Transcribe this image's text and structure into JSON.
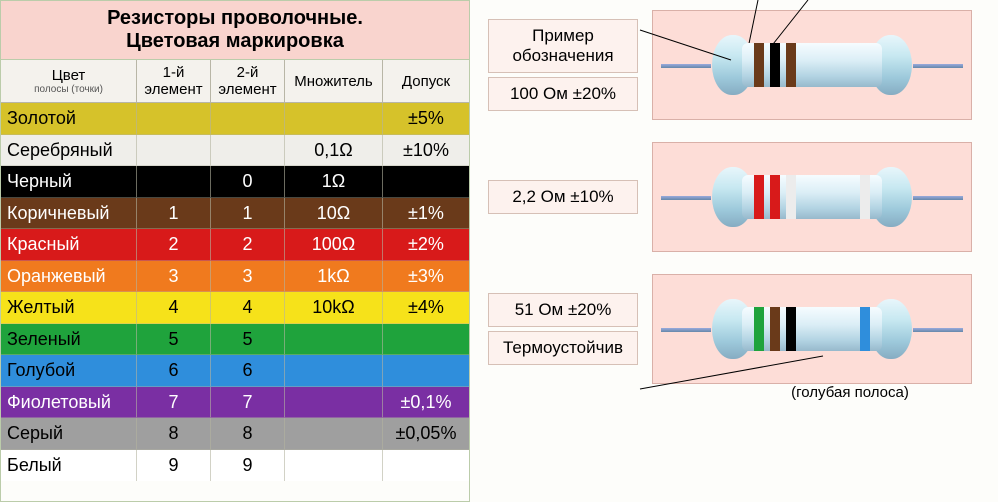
{
  "table": {
    "title_line1": "Резисторы проволочные.",
    "title_line2": "Цветовая маркировка",
    "headers": {
      "color": "Цвет",
      "color_sub": "полосы (точки)",
      "d1": "1-й элемент",
      "d2": "2-й элемент",
      "mult": "Множитель",
      "tol": "Допуск"
    },
    "rows": [
      {
        "name": "Золотой",
        "bg": "#d6c22a",
        "fg": "#000000",
        "d1": "",
        "d2": "",
        "mult": "",
        "tol": "±5%"
      },
      {
        "name": "Серебряный",
        "bg": "#efeeea",
        "fg": "#000000",
        "d1": "",
        "d2": "",
        "mult": "0,1Ω",
        "tol": "±10%"
      },
      {
        "name": "Черный",
        "bg": "#000000",
        "fg": "#ffffff",
        "d1": "",
        "d2": "0",
        "mult": "1Ω",
        "tol": ""
      },
      {
        "name": "Коричневый",
        "bg": "#6a3a1a",
        "fg": "#ffffff",
        "d1": "1",
        "d2": "1",
        "mult": "10Ω",
        "tol": "±1%"
      },
      {
        "name": "Красный",
        "bg": "#d81a1a",
        "fg": "#ffffff",
        "d1": "2",
        "d2": "2",
        "mult": "100Ω",
        "tol": "±2%"
      },
      {
        "name": "Оранжевый",
        "bg": "#f07a1e",
        "fg": "#ffffff",
        "d1": "3",
        "d2": "3",
        "mult": "1kΩ",
        "tol": "±3%"
      },
      {
        "name": "Желтый",
        "bg": "#f6e21a",
        "fg": "#000000",
        "d1": "4",
        "d2": "4",
        "mult": "10kΩ",
        "tol": "±4%"
      },
      {
        "name": "Зеленый",
        "bg": "#1fa33c",
        "fg": "#000000",
        "d1": "5",
        "d2": "5",
        "mult": "",
        "tol": ""
      },
      {
        "name": "Голубой",
        "bg": "#2f8edc",
        "fg": "#000000",
        "d1": "6",
        "d2": "6",
        "mult": "",
        "tol": ""
      },
      {
        "name": "Фиолетовый",
        "bg": "#7a2fa3",
        "fg": "#ffffff",
        "d1": "7",
        "d2": "7",
        "mult": "",
        "tol": "±0,1%"
      },
      {
        "name": "Серый",
        "bg": "#9f9f9f",
        "fg": "#000000",
        "d1": "8",
        "d2": "8",
        "mult": "",
        "tol": "±0,05%"
      },
      {
        "name": "Белый",
        "bg": "#ffffff",
        "fg": "#000000",
        "d1": "9",
        "d2": "9",
        "mult": "",
        "tol": ""
      }
    ]
  },
  "examples": {
    "panel_header": "Пример обозначения",
    "items": [
      {
        "label": "100 Ом ±20%",
        "bands": [
          "#6a3a1a",
          "#000000",
          "#6a3a1a"
        ],
        "tol_band": null,
        "callouts": true
      },
      {
        "label": "2,2 Ом ±10%",
        "bands": [
          "#d81a1a",
          "#d81a1a",
          "#ececec"
        ],
        "tol_band": "#ececec",
        "callouts": false
      },
      {
        "label": "51 Ом ±20%",
        "bands": [
          "#1fa33c",
          "#6a3a1a",
          "#000000"
        ],
        "tol_band": null,
        "extra_band": "#2f8edc",
        "callouts": false
      }
    ],
    "thermo_label": "Термоустойчив",
    "thermo_note": "(голубая полоса)"
  },
  "style": {
    "body_color": "#b8dbe8",
    "panel_bg": "#fdddd7",
    "label_bg": "#fdf2ee",
    "lead_color": "#6f99b8"
  }
}
